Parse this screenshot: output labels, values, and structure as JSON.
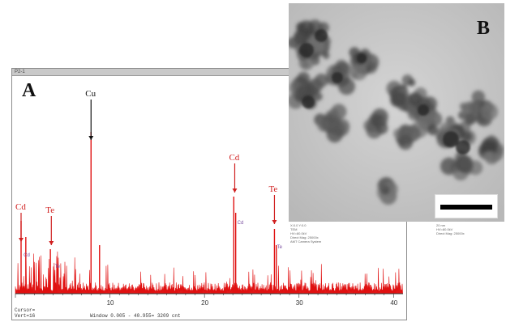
{
  "panel_a": {
    "label": "A",
    "title_bar": "P2-1",
    "peak_labels": [
      {
        "element": "Cd",
        "x_kev": 0.6,
        "color": "#d02020"
      },
      {
        "element": "Te",
        "x_kev": 3.8,
        "color": "#d02020"
      },
      {
        "element": "Cu",
        "x_kev": 8.0,
        "color": "#111111"
      },
      {
        "element": "Cd",
        "x_kev": 23.2,
        "color": "#d02020"
      },
      {
        "element": "Te",
        "x_kev": 27.4,
        "color": "#d02020"
      }
    ],
    "small_labels": [
      {
        "text": "Cd",
        "x_kev": 0.7
      },
      {
        "text": "Te",
        "x_kev": 4.0
      },
      {
        "text": "Cd",
        "x_kev": 23.3
      },
      {
        "text": "Te",
        "x_kev": 27.5
      }
    ],
    "x_ticks": [
      "10",
      "20",
      "30",
      "40"
    ],
    "status_lines": [
      "Cursor=",
      "Vert=16"
    ],
    "window_text": "Window 0.005 - 40.955= 3209 cnt",
    "colors": {
      "spectrum": "#e01010",
      "axis": "#333333"
    }
  },
  "panel_b": {
    "label": "B",
    "scale_bar": "white box with black bar"
  },
  "captions": {
    "left": "X:0.0 Y:0.0\nTEM\nHV=80.0kV\nDirect Mag: 25000x\nAMT Camera System",
    "right": "20 nm\nHV=80.0kV\nDirect Mag: 25000x"
  }
}
